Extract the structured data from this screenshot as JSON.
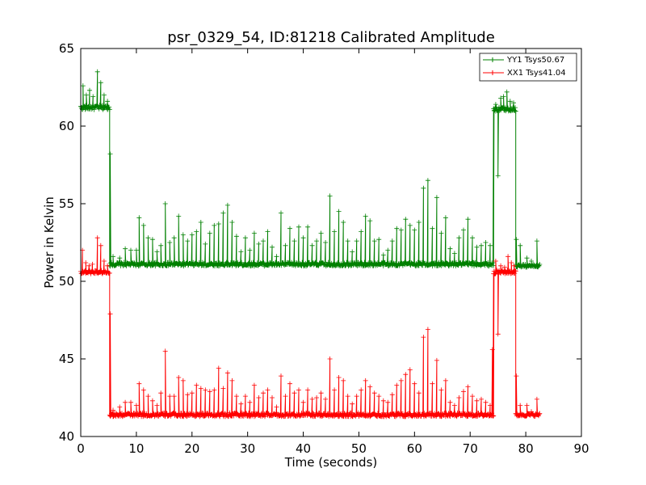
{
  "chart_data": {
    "type": "line",
    "title": "psr_0329_54, ID:81218 Calibrated Amplitude",
    "xlabel": "Time (seconds)",
    "ylabel": "Power in Kelvin",
    "xlim": [
      0,
      90
    ],
    "ylim": [
      40,
      65
    ],
    "xticks": [
      0,
      10,
      20,
      30,
      40,
      50,
      60,
      70,
      80,
      90
    ],
    "yticks": [
      40,
      45,
      50,
      55,
      60,
      65
    ],
    "grid": false,
    "legend_position": "top-right",
    "marker": "plus",
    "series": [
      {
        "name": "YY1 Tsys50.67",
        "color": "#008000",
        "segments": [
          {
            "x_start": 0,
            "x_end": 5.2,
            "level": 61.2,
            "noise": 0.15,
            "spikes": [
              [
                0.4,
                62.6
              ],
              [
                1.0,
                62.0
              ],
              [
                1.6,
                62.3
              ],
              [
                2.2,
                61.9
              ],
              [
                3.0,
                63.5
              ],
              [
                3.6,
                62.8
              ],
              [
                4.2,
                62.0
              ],
              [
                4.8,
                61.6
              ]
            ]
          },
          {
            "x_start": 5.2,
            "x_end": 74.2,
            "level": 51.1,
            "noise": 0.12,
            "spikes": [
              [
                5.8,
                51.6
              ],
              [
                7.0,
                51.5
              ],
              [
                8.0,
                52.1
              ],
              [
                9.0,
                52.0
              ],
              [
                10.0,
                52.0
              ],
              [
                10.5,
                54.1
              ],
              [
                11.3,
                53.6
              ],
              [
                12.1,
                52.8
              ],
              [
                12.9,
                52.7
              ],
              [
                13.7,
                51.9
              ],
              [
                14.4,
                52.3
              ],
              [
                15.2,
                55.0
              ],
              [
                16.0,
                52.5
              ],
              [
                16.8,
                52.8
              ],
              [
                17.6,
                54.2
              ],
              [
                18.4,
                53.0
              ],
              [
                19.2,
                52.6
              ],
              [
                20.0,
                53.0
              ],
              [
                20.8,
                53.2
              ],
              [
                21.6,
                53.8
              ],
              [
                22.4,
                52.4
              ],
              [
                23.2,
                53.1
              ],
              [
                24.0,
                53.6
              ],
              [
                24.8,
                53.7
              ],
              [
                25.6,
                54.4
              ],
              [
                26.4,
                54.9
              ],
              [
                27.2,
                53.8
              ],
              [
                28.0,
                52.9
              ],
              [
                28.8,
                51.9
              ],
              [
                29.6,
                52.8
              ],
              [
                30.4,
                52.0
              ],
              [
                31.2,
                53.1
              ],
              [
                32.0,
                52.4
              ],
              [
                32.8,
                52.6
              ],
              [
                33.6,
                53.2
              ],
              [
                34.4,
                52.2
              ],
              [
                35.2,
                51.6
              ],
              [
                36.0,
                54.4
              ],
              [
                36.8,
                52.3
              ],
              [
                37.6,
                53.4
              ],
              [
                38.4,
                52.6
              ],
              [
                39.2,
                53.5
              ],
              [
                40.0,
                52.8
              ],
              [
                40.8,
                53.5
              ],
              [
                41.6,
                52.3
              ],
              [
                42.4,
                52.6
              ],
              [
                43.2,
                53.1
              ],
              [
                44.0,
                52.5
              ],
              [
                44.8,
                55.5
              ],
              [
                45.6,
                53.2
              ],
              [
                46.4,
                54.5
              ],
              [
                47.2,
                53.8
              ],
              [
                48.0,
                52.6
              ],
              [
                48.8,
                51.9
              ],
              [
                49.6,
                52.6
              ],
              [
                50.4,
                53.2
              ],
              [
                51.2,
                54.2
              ],
              [
                52.0,
                53.9
              ],
              [
                52.8,
                52.6
              ],
              [
                53.6,
                52.7
              ],
              [
                54.4,
                51.7
              ],
              [
                55.2,
                52.0
              ],
              [
                56.0,
                52.6
              ],
              [
                56.8,
                53.4
              ],
              [
                57.6,
                53.3
              ],
              [
                58.4,
                54.0
              ],
              [
                59.2,
                53.6
              ],
              [
                60.0,
                53.3
              ],
              [
                60.8,
                53.8
              ],
              [
                61.6,
                56.0
              ],
              [
                62.4,
                56.5
              ],
              [
                63.2,
                53.4
              ],
              [
                64.0,
                55.4
              ],
              [
                64.8,
                53.1
              ],
              [
                65.6,
                54.1
              ],
              [
                66.4,
                52.1
              ],
              [
                67.2,
                51.8
              ],
              [
                68.0,
                52.8
              ],
              [
                68.8,
                53.3
              ],
              [
                69.6,
                54.0
              ],
              [
                70.4,
                52.8
              ],
              [
                71.2,
                52.2
              ],
              [
                72.0,
                52.3
              ],
              [
                72.8,
                52.5
              ],
              [
                73.6,
                52.3
              ]
            ]
          },
          {
            "x_start": 74.2,
            "x_end": 78.2,
            "level": 61.1,
            "noise": 0.15,
            "spikes": [
              [
                74.6,
                61.4
              ],
              [
                75.0,
                56.8
              ],
              [
                75.5,
                61.8
              ],
              [
                76.0,
                61.9
              ],
              [
                76.6,
                62.2
              ],
              [
                77.2,
                61.6
              ],
              [
                77.8,
                61.5
              ]
            ]
          },
          {
            "x_start": 78.2,
            "x_end": 82.5,
            "level": 51.0,
            "noise": 0.1,
            "spikes": [
              [
                79.0,
                52.3
              ],
              [
                80.2,
                51.5
              ],
              [
                81.0,
                51.3
              ],
              [
                82.0,
                52.6
              ]
            ]
          }
        ],
        "transitions": [
          [
            5.3,
            58.2
          ],
          [
            78.3,
            52.7
          ]
        ]
      },
      {
        "name": "XX1 Tsys41.04",
        "color": "#ff0000",
        "segments": [
          {
            "x_start": 0,
            "x_end": 5.2,
            "level": 50.6,
            "noise": 0.12,
            "spikes": [
              [
                0.3,
                52.0
              ],
              [
                0.9,
                51.2
              ],
              [
                1.5,
                51.0
              ],
              [
                2.1,
                51.1
              ],
              [
                3.0,
                52.8
              ],
              [
                3.6,
                52.3
              ],
              [
                4.2,
                51.3
              ],
              [
                4.8,
                51.0
              ]
            ]
          },
          {
            "x_start": 5.2,
            "x_end": 74.2,
            "level": 41.4,
            "noise": 0.12,
            "spikes": [
              [
                5.8,
                41.7
              ],
              [
                7.0,
                41.9
              ],
              [
                8.0,
                42.2
              ],
              [
                9.0,
                42.2
              ],
              [
                10.0,
                42.0
              ],
              [
                10.5,
                43.4
              ],
              [
                11.3,
                43.0
              ],
              [
                12.1,
                42.6
              ],
              [
                12.9,
                42.3
              ],
              [
                13.7,
                42.0
              ],
              [
                14.4,
                42.8
              ],
              [
                15.2,
                45.5
              ],
              [
                16.0,
                42.6
              ],
              [
                16.8,
                42.6
              ],
              [
                17.6,
                43.8
              ],
              [
                18.4,
                43.6
              ],
              [
                19.2,
                42.7
              ],
              [
                20.0,
                42.8
              ],
              [
                20.8,
                43.3
              ],
              [
                21.6,
                43.1
              ],
              [
                22.4,
                43.0
              ],
              [
                23.2,
                42.9
              ],
              [
                24.0,
                43.0
              ],
              [
                24.8,
                44.4
              ],
              [
                25.6,
                43.1
              ],
              [
                26.4,
                44.1
              ],
              [
                27.2,
                43.6
              ],
              [
                28.0,
                42.6
              ],
              [
                28.8,
                42.1
              ],
              [
                29.6,
                42.6
              ],
              [
                30.4,
                42.2
              ],
              [
                31.2,
                43.3
              ],
              [
                32.0,
                42.5
              ],
              [
                32.8,
                42.8
              ],
              [
                33.6,
                43.0
              ],
              [
                34.4,
                42.5
              ],
              [
                35.2,
                41.9
              ],
              [
                36.0,
                43.9
              ],
              [
                36.8,
                42.6
              ],
              [
                37.6,
                43.4
              ],
              [
                38.4,
                42.8
              ],
              [
                39.2,
                43.0
              ],
              [
                40.0,
                42.2
              ],
              [
                40.8,
                43.0
              ],
              [
                41.6,
                42.4
              ],
              [
                42.4,
                42.5
              ],
              [
                43.2,
                42.8
              ],
              [
                44.0,
                42.4
              ],
              [
                44.8,
                45.0
              ],
              [
                45.6,
                43.0
              ],
              [
                46.4,
                43.8
              ],
              [
                47.2,
                43.6
              ],
              [
                48.0,
                42.6
              ],
              [
                48.8,
                42.1
              ],
              [
                49.6,
                42.6
              ],
              [
                50.4,
                43.0
              ],
              [
                51.2,
                43.6
              ],
              [
                52.0,
                43.2
              ],
              [
                52.8,
                42.8
              ],
              [
                53.6,
                42.6
              ],
              [
                54.4,
                42.3
              ],
              [
                55.2,
                42.2
              ],
              [
                56.0,
                42.7
              ],
              [
                56.8,
                43.3
              ],
              [
                57.6,
                43.6
              ],
              [
                58.4,
                44.0
              ],
              [
                59.2,
                44.3
              ],
              [
                60.0,
                43.4
              ],
              [
                60.8,
                42.8
              ],
              [
                61.6,
                46.4
              ],
              [
                62.4,
                46.9
              ],
              [
                63.2,
                43.4
              ],
              [
                64.0,
                44.9
              ],
              [
                64.8,
                43.0
              ],
              [
                65.6,
                43.6
              ],
              [
                66.4,
                42.2
              ],
              [
                67.2,
                42.0
              ],
              [
                68.0,
                42.5
              ],
              [
                68.8,
                42.9
              ],
              [
                69.6,
                43.2
              ],
              [
                70.4,
                42.6
              ],
              [
                71.2,
                42.3
              ],
              [
                72.0,
                42.4
              ],
              [
                72.8,
                42.2
              ],
              [
                73.6,
                42.0
              ]
            ]
          },
          {
            "x_start": 74.2,
            "x_end": 78.2,
            "level": 50.6,
            "noise": 0.12,
            "spikes": [
              [
                74.6,
                51.3
              ],
              [
                75.0,
                46.6
              ],
              [
                75.5,
                51.0
              ],
              [
                76.2,
                50.9
              ],
              [
                76.8,
                51.6
              ],
              [
                77.4,
                51.2
              ],
              [
                77.9,
                51.0
              ]
            ]
          },
          {
            "x_start": 78.2,
            "x_end": 82.5,
            "level": 41.4,
            "noise": 0.1,
            "spikes": [
              [
                79.0,
                42.0
              ],
              [
                80.2,
                42.0
              ],
              [
                81.0,
                41.6
              ],
              [
                82.0,
                42.4
              ]
            ]
          }
        ],
        "transitions": [
          [
            5.3,
            47.9
          ],
          [
            78.3,
            43.9
          ],
          [
            74.0,
            45.6
          ]
        ]
      }
    ]
  }
}
